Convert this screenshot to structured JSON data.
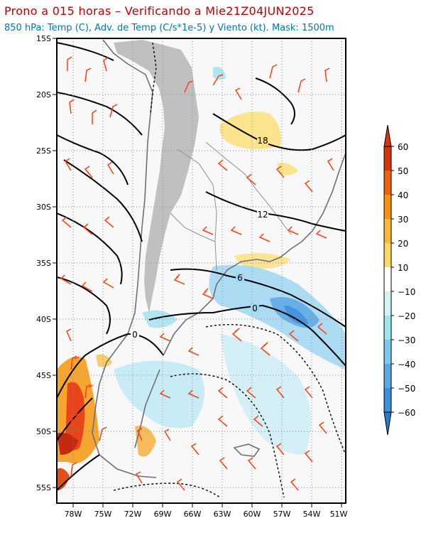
{
  "header": {
    "title": "Prono a 015 horas – Verificando a Mie21Z04JUN2025",
    "subtitle": "850 hPa: Temp (C), Adv. de Temp (C/s*1e-5) y Viento (kt). Mask: 1500m"
  },
  "map": {
    "lat_ticks": [
      "15S",
      "20S",
      "25S",
      "30S",
      "35S",
      "40S",
      "45S",
      "50S",
      "55S"
    ],
    "lon_ticks": [
      "78W",
      "75W",
      "72W",
      "69W",
      "66W",
      "63W",
      "60W",
      "57W",
      "54W",
      "51W"
    ],
    "contour_labels": [
      "18",
      "12",
      "6",
      "0",
      "0"
    ]
  },
  "colorbar": {
    "labels": [
      "60",
      "50",
      "40",
      "30",
      "20",
      "10",
      "−10",
      "−20",
      "−30",
      "−40",
      "−50",
      "−60"
    ],
    "colors": [
      "#d9340a",
      "#f06010",
      "#f7900f",
      "#f9b83a",
      "#fbd965",
      "#fff3b0",
      "#ffffff",
      "#cff6f5",
      "#9fe6f0",
      "#7cc8ee",
      "#5aa8e4",
      "#3c8fdc",
      "#2a78cc"
    ]
  },
  "colors": {
    "land_mask": "#c0c0c0",
    "wind_barb": "#ff4010",
    "contour": "#000000",
    "title": "#c00000",
    "subtitle": "#0077b0"
  }
}
